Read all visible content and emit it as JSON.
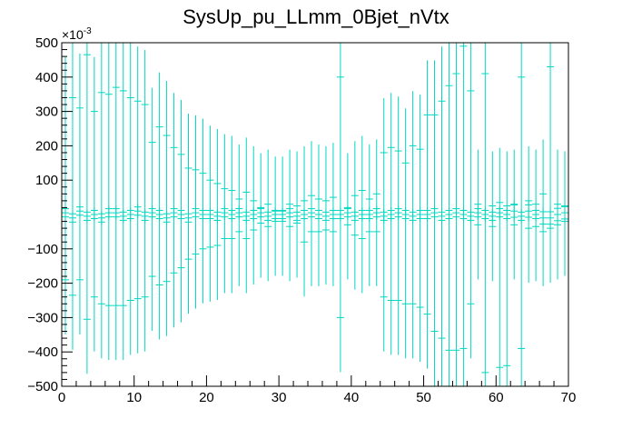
{
  "chart_data": {
    "type": "scatter",
    "title": "SysUp_pu_LLmm_0Bjet_nVtx",
    "xlabel": "",
    "ylabel": "",
    "xlim": [
      0,
      70
    ],
    "ylim": [
      -0.5,
      0.5
    ],
    "y_exponent_label": "×10",
    "y_exponent_power": "-3",
    "x_ticks": [
      0,
      10,
      20,
      30,
      40,
      50,
      60,
      70
    ],
    "x_tick_labels": [
      "0",
      "10",
      "20",
      "30",
      "40",
      "50",
      "60",
      "70"
    ],
    "y_ticks": [
      -0.5,
      -0.4,
      -0.3,
      -0.2,
      -0.1,
      0.1,
      0.2,
      0.3,
      0.4,
      0.5
    ],
    "y_tick_labels": [
      "−500",
      "−400",
      "−300",
      "−200",
      "−100",
      "100",
      "200",
      "300",
      "400",
      "500"
    ],
    "marker_color": "#00d8c0",
    "frame_color": "#000000",
    "grid": false,
    "legend": "none",
    "series": [
      {
        "bin_width": 1,
        "x": [
          0.5,
          1.5,
          2.5,
          3.5,
          4.5,
          5.5,
          6.5,
          7.5,
          8.5,
          9.5,
          10.5,
          11.5,
          12.5,
          13.5,
          14.5,
          15.5,
          16.5,
          17.5,
          18.5,
          19.5,
          20.5,
          21.5,
          22.5,
          23.5,
          24.5,
          25.5,
          26.5,
          27.5,
          28.5,
          29.5,
          30.5,
          31.5,
          32.5,
          33.5,
          34.5,
          35.5,
          36.5,
          37.5,
          38.5,
          39.5,
          40.5,
          41.5,
          42.5,
          43.5,
          44.5,
          45.5,
          46.5,
          47.5,
          48.5,
          49.5,
          50.5,
          51.5,
          52.5,
          53.5,
          54.5,
          55.5,
          56.5,
          57.5,
          58.5,
          59.5,
          60.5,
          61.5,
          62.5,
          63.5,
          64.5,
          65.5,
          66.5,
          67.5,
          68.5,
          69.5
        ],
        "y_upper": [
          0.3,
          0.34,
          0.31,
          0.465,
          0.3,
          0.355,
          0.35,
          0.37,
          0.36,
          0.34,
          0.33,
          0.32,
          0.21,
          0.255,
          0.23,
          0.195,
          0.175,
          0.135,
          0.13,
          0.12,
          0.1,
          0.09,
          0.075,
          0.07,
          0.045,
          0.065,
          0.04,
          0.02,
          0.03,
          0.01,
          0.01,
          0.03,
          0.025,
          0.04,
          0.055,
          0.045,
          0.04,
          0.05,
          0.4,
          0.02,
          0.055,
          0.07,
          0.045,
          0.06,
          0.18,
          0.195,
          0.185,
          0.15,
          0.2,
          0.19,
          0.29,
          0.29,
          0.33,
          0.375,
          0.41,
          0.49,
          0.36,
          0.03,
          0.41,
          0.025,
          0.035,
          0.025,
          0.03,
          0.4,
          0.04,
          0.03,
          0.06,
          0.43,
          0.03,
          0.025
        ],
        "y_lower": [
          -0.19,
          -0.235,
          -0.19,
          -0.305,
          -0.24,
          -0.26,
          -0.265,
          -0.265,
          -0.265,
          -0.25,
          -0.245,
          -0.24,
          -0.18,
          -0.205,
          -0.195,
          -0.17,
          -0.155,
          -0.13,
          -0.115,
          -0.1,
          -0.095,
          -0.09,
          -0.07,
          -0.07,
          -0.05,
          -0.07,
          -0.045,
          -0.025,
          -0.035,
          -0.02,
          -0.02,
          -0.035,
          -0.025,
          -0.08,
          -0.05,
          -0.05,
          -0.045,
          -0.05,
          -0.3,
          -0.03,
          -0.06,
          -0.07,
          -0.05,
          -0.05,
          -0.24,
          -0.25,
          -0.25,
          -0.26,
          -0.26,
          -0.27,
          -0.29,
          -0.34,
          -0.36,
          -0.395,
          -0.395,
          -0.39,
          -0.26,
          -0.03,
          -0.46,
          -0.035,
          -0.445,
          -0.44,
          -0.03,
          -0.39,
          -0.04,
          -0.035,
          -0.05,
          -0.04,
          -0.03,
          -0.02
        ],
        "y_center": [
          0.005,
          -0.01,
          0.01,
          -0.005,
          0.0,
          -0.01,
          0.005,
          0.005,
          -0.005,
          0.0,
          0.01,
          -0.005,
          0.005,
          0.0,
          -0.01,
          0.005,
          0.0,
          -0.01,
          0.005,
          0.0,
          0.0,
          -0.005,
          0.005,
          0.0,
          0.005,
          -0.005,
          0.0,
          0.005,
          -0.005,
          0.0,
          0.0,
          0.005,
          -0.005,
          0.0,
          0.005,
          0.0,
          -0.005,
          0.0,
          0.0,
          0.005,
          -0.005,
          0.0,
          0.0,
          0.005,
          -0.005,
          0.0,
          0.005,
          0.0,
          -0.005,
          0.0,
          0.0,
          0.005,
          -0.005,
          0.0,
          0.005,
          0.0,
          -0.005,
          0.005,
          0.0,
          -0.005,
          0.005,
          0.0,
          0.01,
          -0.005,
          0.01,
          0.0,
          -0.01,
          -0.01,
          0.0,
          0.005
        ],
        "y_center_err": [
          0.02,
          0.02,
          0.02,
          0.02,
          0.02,
          0.02,
          0.02,
          0.02,
          0.02,
          0.02,
          0.02,
          0.02,
          0.02,
          0.02,
          0.02,
          0.02,
          0.02,
          0.02,
          0.02,
          0.02,
          0.02,
          0.02,
          0.02,
          0.02,
          0.02,
          0.02,
          0.02,
          0.02,
          0.02,
          0.02,
          0.02,
          0.02,
          0.02,
          0.02,
          0.02,
          0.02,
          0.02,
          0.02,
          0.02,
          0.02,
          0.02,
          0.02,
          0.02,
          0.02,
          0.02,
          0.02,
          0.02,
          0.02,
          0.02,
          0.02,
          0.02,
          0.02,
          0.02,
          0.02,
          0.02,
          0.02,
          0.02,
          0.02,
          0.02,
          0.02,
          0.02,
          0.02,
          0.03,
          0.02,
          0.03,
          0.02,
          0.03,
          0.03,
          0.03,
          0.03
        ]
      }
    ]
  }
}
